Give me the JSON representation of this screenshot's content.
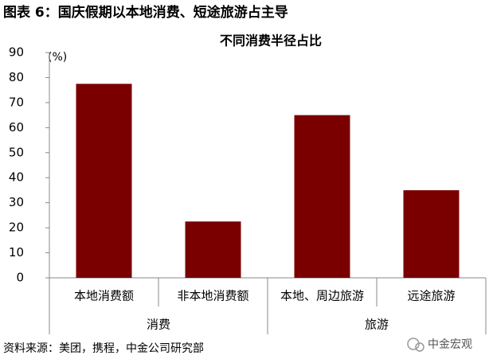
{
  "chart_data": {
    "type": "bar",
    "title": "图表 6：国庆假期以本地消费、短途旅游占主导",
    "subtitle": "不同消费半径占比",
    "y_unit": "(%)",
    "groups": [
      {
        "name": "消费",
        "categories": [
          "本地消费额",
          "非本地消费额"
        ],
        "values": [
          77.5,
          22.5
        ]
      },
      {
        "name": "旅游",
        "categories": [
          "本地、周边旅游",
          "远途旅游"
        ],
        "values": [
          65,
          35
        ]
      }
    ],
    "color": "#7a0000",
    "ylim": [
      0,
      90
    ],
    "yticks": [
      0,
      10,
      20,
      30,
      40,
      50,
      60,
      70,
      80,
      90
    ],
    "source": "资料来源：美团，携程，中金公司研究部",
    "watermark": "中金宏观"
  }
}
